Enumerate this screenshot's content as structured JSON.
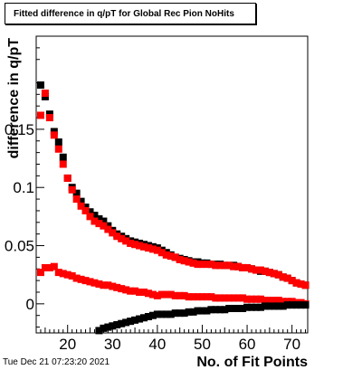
{
  "title": "Fitted difference in q/pT for Global Rec Pion NoHits",
  "timestamp": "Tue Dec 21 07:23:20 2021",
  "chart_data": {
    "type": "scatter",
    "title": "Fitted difference in q/pT for Global Rec Pion NoHits",
    "xlabel": "No. of Fit Points",
    "ylabel": "difference in q/pT",
    "xlim": [
      13,
      73.5
    ],
    "ylim": [
      -0.025,
      0.23
    ],
    "x_ticks": [
      20,
      30,
      40,
      50,
      60,
      70
    ],
    "x_tick_labels": [
      "20",
      "30",
      "40",
      "50",
      "60",
      "70"
    ],
    "y_ticks": [
      0,
      0.05,
      0.1,
      0.15
    ],
    "y_tick_labels": [
      "0",
      "0.05",
      "0.1",
      "0.15"
    ],
    "grid": false,
    "series": [
      {
        "color": "#000000",
        "marker": "square",
        "x": [
          14,
          15,
          16,
          17,
          18,
          19,
          20,
          21,
          22,
          23,
          24,
          25,
          26,
          27,
          28,
          29,
          30,
          31,
          32,
          33,
          34,
          35,
          36,
          37,
          38,
          39,
          40,
          41,
          42,
          43,
          44,
          45,
          46,
          47,
          48,
          49,
          50,
          51,
          52,
          53,
          54,
          55,
          56,
          57,
          58,
          59,
          60,
          61,
          62,
          63,
          64,
          65,
          66,
          67,
          68,
          69,
          70,
          71,
          72,
          73
        ],
        "y": [
          0.188,
          0.178,
          0.163,
          0.148,
          0.139,
          0.126,
          0.108,
          0.1,
          0.095,
          0.088,
          0.083,
          0.079,
          0.076,
          0.073,
          0.071,
          0.067,
          0.063,
          0.06,
          0.058,
          0.056,
          0.054,
          0.053,
          0.052,
          0.051,
          0.05,
          0.049,
          0.048,
          0.046,
          0.044,
          0.042,
          0.04,
          0.039,
          0.038,
          0.037,
          0.036,
          0.036,
          0.035,
          0.035,
          0.034,
          0.034,
          0.034,
          0.033,
          0.033,
          0.033,
          0.032,
          0.031,
          0.031,
          0.03,
          0.029,
          0.028,
          0.028,
          0.027,
          0.026,
          0.025,
          0.023,
          0.022,
          0.02,
          0.018,
          0.017,
          0.016
        ]
      },
      {
        "color": "#ff0000",
        "marker": "square",
        "x": [
          14,
          15,
          16,
          17,
          18,
          19,
          20,
          21,
          22,
          23,
          24,
          25,
          26,
          27,
          28,
          29,
          30,
          31,
          32,
          33,
          34,
          35,
          36,
          37,
          38,
          39,
          40,
          41,
          42,
          43,
          44,
          45,
          46,
          47,
          48,
          49,
          50,
          51,
          52,
          53,
          54,
          55,
          56,
          57,
          58,
          59,
          60,
          61,
          62,
          63,
          64,
          65,
          66,
          67,
          68,
          69,
          70,
          71,
          72,
          73
        ],
        "y": [
          0.162,
          0.181,
          0.16,
          0.145,
          0.133,
          0.12,
          0.108,
          0.098,
          0.09,
          0.084,
          0.08,
          0.075,
          0.071,
          0.069,
          0.067,
          0.064,
          0.061,
          0.058,
          0.056,
          0.054,
          0.052,
          0.051,
          0.05,
          0.049,
          0.048,
          0.047,
          0.046,
          0.044,
          0.042,
          0.041,
          0.04,
          0.038,
          0.037,
          0.036,
          0.035,
          0.034,
          0.034,
          0.034,
          0.034,
          0.033,
          0.033,
          0.033,
          0.033,
          0.032,
          0.032,
          0.031,
          0.031,
          0.03,
          0.029,
          0.029,
          0.028,
          0.027,
          0.026,
          0.025,
          0.023,
          0.022,
          0.02,
          0.018,
          0.017,
          0.016
        ]
      },
      {
        "color": "#ff0000",
        "marker": "square",
        "x": [
          14,
          15,
          16,
          17,
          18,
          19,
          20,
          21,
          22,
          23,
          24,
          25,
          26,
          27,
          28,
          29,
          30,
          31,
          32,
          33,
          34,
          35,
          36,
          37,
          38,
          39,
          40,
          41,
          42,
          43,
          44,
          45,
          46,
          47,
          48,
          49,
          50,
          51,
          52,
          53,
          54,
          55,
          56,
          57,
          58,
          59,
          60,
          61,
          62,
          63,
          64,
          65,
          66,
          67,
          68,
          69,
          70,
          71,
          72,
          73
        ],
        "y": [
          0.027,
          0.031,
          0.031,
          0.032,
          0.027,
          0.026,
          0.025,
          0.024,
          0.022,
          0.021,
          0.02,
          0.019,
          0.018,
          0.017,
          0.016,
          0.016,
          0.015,
          0.014,
          0.013,
          0.012,
          0.011,
          0.011,
          0.01,
          0.01,
          0.009,
          0.008,
          0.007,
          0.008,
          0.008,
          0.008,
          0.007,
          0.007,
          0.007,
          0.006,
          0.006,
          0.006,
          0.006,
          0.006,
          0.006,
          0.005,
          0.005,
          0.005,
          0.005,
          0.005,
          0.005,
          0.005,
          0.004,
          0.004,
          0.004,
          0.004,
          0.003,
          0.003,
          0.003,
          0.003,
          0.002,
          0.002,
          0.002,
          0.001,
          0.001,
          0.0
        ]
      },
      {
        "color": "#000000",
        "marker": "square",
        "x": [
          27,
          28,
          29,
          30,
          31,
          32,
          33,
          34,
          35,
          36,
          37,
          38,
          39,
          40,
          41,
          42,
          43,
          44,
          45,
          46,
          47,
          48,
          49,
          50,
          51,
          52,
          53,
          54,
          55,
          56,
          57,
          58,
          59,
          60,
          61,
          62,
          63,
          64,
          65,
          66,
          67,
          68,
          69,
          70,
          71,
          72,
          73
        ],
        "y": [
          -0.023,
          -0.021,
          -0.02,
          -0.019,
          -0.018,
          -0.017,
          -0.016,
          -0.015,
          -0.014,
          -0.013,
          -0.012,
          -0.011,
          -0.01,
          -0.009,
          -0.009,
          -0.009,
          -0.009,
          -0.008,
          -0.008,
          -0.008,
          -0.007,
          -0.007,
          -0.006,
          -0.006,
          -0.006,
          -0.005,
          -0.005,
          -0.005,
          -0.005,
          -0.004,
          -0.004,
          -0.004,
          -0.004,
          -0.003,
          -0.003,
          -0.003,
          -0.003,
          -0.002,
          -0.002,
          -0.002,
          -0.002,
          -0.002,
          -0.001,
          -0.001,
          -0.001,
          -0.001,
          -0.001
        ]
      }
    ]
  }
}
